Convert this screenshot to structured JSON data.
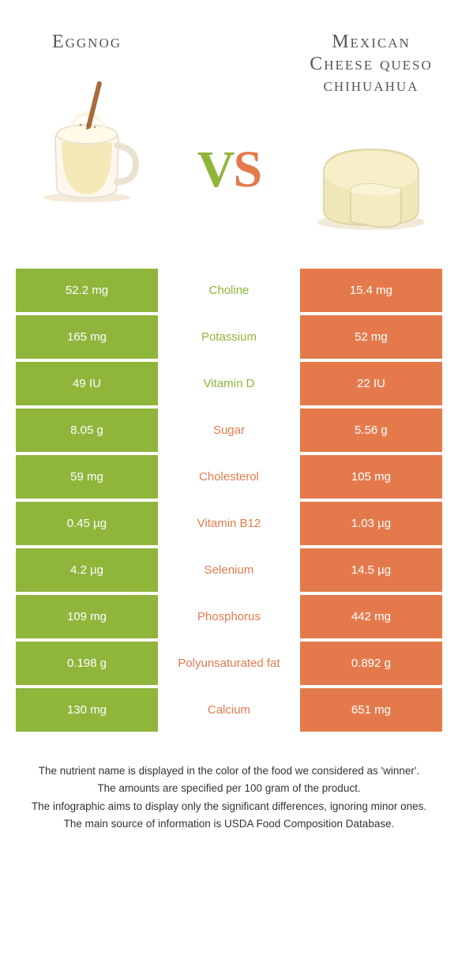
{
  "colors": {
    "left": "#8fb53b",
    "right": "#e47a4c",
    "white": "#ffffff"
  },
  "header": {
    "left_title": "Eggnog",
    "right_title": "Mexican Cheese queso chihuahua",
    "vs_v": "V",
    "vs_s": "S"
  },
  "rows": [
    {
      "left": "52.2 mg",
      "label": "Choline",
      "right": "15.4 mg",
      "winner": "left"
    },
    {
      "left": "165 mg",
      "label": "Potassium",
      "right": "52 mg",
      "winner": "left"
    },
    {
      "left": "49 IU",
      "label": "Vitamin D",
      "right": "22 IU",
      "winner": "left"
    },
    {
      "left": "8.05 g",
      "label": "Sugar",
      "right": "5.56 g",
      "winner": "right"
    },
    {
      "left": "59 mg",
      "label": "Cholesterol",
      "right": "105 mg",
      "winner": "right"
    },
    {
      "left": "0.45 µg",
      "label": "Vitamin B12",
      "right": "1.03 µg",
      "winner": "right"
    },
    {
      "left": "4.2 µg",
      "label": "Selenium",
      "right": "14.5 µg",
      "winner": "right"
    },
    {
      "left": "109 mg",
      "label": "Phosphorus",
      "right": "442 mg",
      "winner": "right"
    },
    {
      "left": "0.198 g",
      "label": "Polyunsaturated fat",
      "right": "0.892 g",
      "winner": "right"
    },
    {
      "left": "130 mg",
      "label": "Calcium",
      "right": "651 mg",
      "winner": "right"
    }
  ],
  "footnotes": [
    "The nutrient name is displayed in the color of the food we considered as 'winner'.",
    "The amounts are specified per 100 gram of the product.",
    "The infographic aims to display only the significant differences, ignoring minor ones.",
    "The main source of information is USDA Food Composition Database."
  ]
}
